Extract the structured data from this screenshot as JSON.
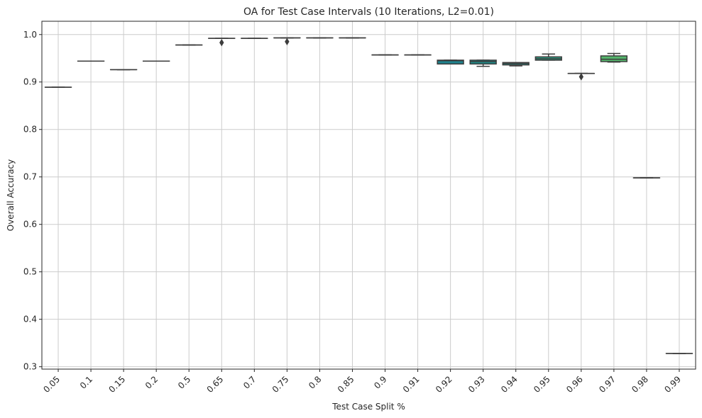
{
  "chart_data": {
    "type": "box",
    "title": "OA for Test Case Intervals (10 Iterations, L2=0.01)",
    "xlabel": "Test Case Split %",
    "ylabel": "Overall Accuracy",
    "ylim": [
      0.295,
      1.028
    ],
    "yticks": [
      "0.3",
      "0.4",
      "0.5",
      "0.6",
      "0.7",
      "0.8",
      "0.9",
      "1.0"
    ],
    "grid": true,
    "categories": [
      "0.05",
      "0.1",
      "0.15",
      "0.2",
      "0.5",
      "0.65",
      "0.7",
      "0.75",
      "0.8",
      "0.85",
      "0.9",
      "0.91",
      "0.92",
      "0.93",
      "0.94",
      "0.95",
      "0.96",
      "0.97",
      "0.98",
      "0.99"
    ],
    "boxes": [
      {
        "q1": 0.889,
        "median": 0.889,
        "q3": 0.889,
        "whislo": 0.889,
        "whishi": 0.889,
        "fliers": []
      },
      {
        "q1": 0.944,
        "median": 0.944,
        "q3": 0.944,
        "whislo": 0.944,
        "whishi": 0.944,
        "fliers": []
      },
      {
        "q1": 0.926,
        "median": 0.926,
        "q3": 0.926,
        "whislo": 0.926,
        "whishi": 0.926,
        "fliers": []
      },
      {
        "q1": 0.944,
        "median": 0.944,
        "q3": 0.944,
        "whislo": 0.944,
        "whishi": 0.944,
        "fliers": []
      },
      {
        "q1": 0.978,
        "median": 0.978,
        "q3": 0.978,
        "whislo": 0.978,
        "whishi": 0.978,
        "fliers": []
      },
      {
        "q1": 0.992,
        "median": 0.992,
        "q3": 0.992,
        "whislo": 0.992,
        "whishi": 0.992,
        "fliers": [
          0.983
        ]
      },
      {
        "q1": 0.992,
        "median": 0.992,
        "q3": 0.992,
        "whislo": 0.992,
        "whishi": 0.992,
        "fliers": []
      },
      {
        "q1": 0.993,
        "median": 0.993,
        "q3": 0.993,
        "whislo": 0.993,
        "whishi": 0.993,
        "fliers": [
          0.985
        ]
      },
      {
        "q1": 0.993,
        "median": 0.993,
        "q3": 0.993,
        "whislo": 0.993,
        "whishi": 0.993,
        "fliers": []
      },
      {
        "q1": 0.993,
        "median": 0.993,
        "q3": 0.993,
        "whislo": 0.993,
        "whishi": 0.993,
        "fliers": []
      },
      {
        "q1": 0.957,
        "median": 0.957,
        "q3": 0.957,
        "whislo": 0.957,
        "whishi": 0.957,
        "fliers": []
      },
      {
        "q1": 0.957,
        "median": 0.957,
        "q3": 0.957,
        "whislo": 0.957,
        "whishi": 0.957,
        "fliers": []
      },
      {
        "q1": 0.938,
        "median": 0.945,
        "q3": 0.946,
        "whislo": 0.938,
        "whishi": 0.946,
        "fliers": []
      },
      {
        "q1": 0.938,
        "median": 0.943,
        "q3": 0.946,
        "whislo": 0.933,
        "whishi": 0.946,
        "fliers": []
      },
      {
        "q1": 0.936,
        "median": 0.939,
        "q3": 0.941,
        "whislo": 0.934,
        "whishi": 0.941,
        "fliers": []
      },
      {
        "q1": 0.946,
        "median": 0.949,
        "q3": 0.953,
        "whislo": 0.946,
        "whishi": 0.959,
        "fliers": []
      },
      {
        "q1": 0.918,
        "median": 0.918,
        "q3": 0.918,
        "whislo": 0.918,
        "whishi": 0.918,
        "fliers": [
          0.911
        ]
      },
      {
        "q1": 0.943,
        "median": 0.948,
        "q3": 0.955,
        "whislo": 0.942,
        "whishi": 0.96,
        "fliers": []
      },
      {
        "q1": 0.698,
        "median": 0.698,
        "q3": 0.698,
        "whislo": 0.698,
        "whishi": 0.698,
        "fliers": []
      },
      {
        "q1": 0.328,
        "median": 0.328,
        "q3": 0.328,
        "whislo": 0.328,
        "whishi": 0.328,
        "fliers": []
      }
    ],
    "colors": [
      "#3d0551",
      "#440d5e",
      "#47196b",
      "#482575",
      "#46307e",
      "#423b85",
      "#3d468a",
      "#38518c",
      "#325b8d",
      "#2d658e",
      "#286f8e",
      "#24788e",
      "#1f828d",
      "#1e8c8a",
      "#21958b",
      "#2aa084",
      "#3bab7a",
      "#55b66c",
      "#75c158",
      "#9bcc40"
    ],
    "colors_note_skip": true
  }
}
